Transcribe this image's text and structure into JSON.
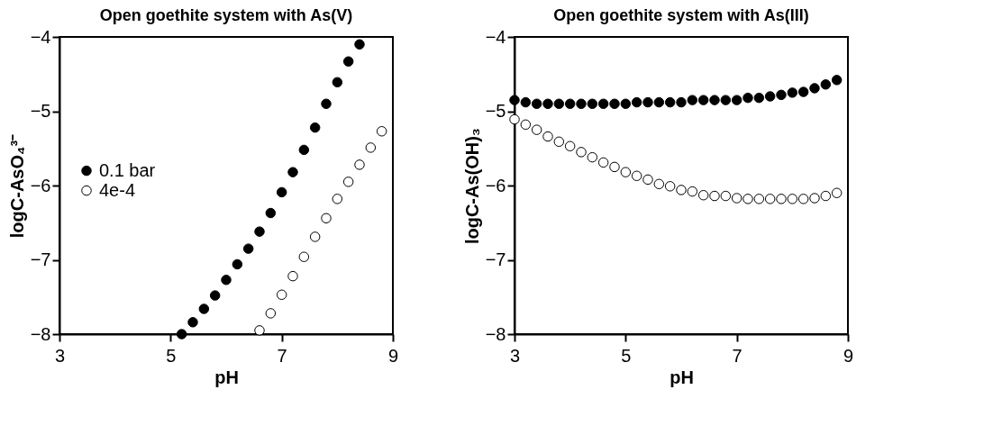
{
  "chart_data": [
    {
      "type": "scatter",
      "title": "Open goethite system with As(V)",
      "xlabel": "pH",
      "ylabel": "logC-AsO₄³⁻",
      "xlim": [
        3,
        9
      ],
      "xticks": [
        3,
        5,
        7,
        9
      ],
      "ylim": [
        -8,
        -4
      ],
      "yticks": [
        -8,
        -7,
        -6,
        -5,
        -4
      ],
      "grid": false,
      "legend": "left",
      "marker": "circle",
      "series": [
        {
          "name": "0.1 bar",
          "color": "#000000",
          "x": [
            5.2,
            5.4,
            5.6,
            5.8,
            6.0,
            6.2,
            6.4,
            6.6,
            6.8,
            7.0,
            7.2,
            7.4,
            7.6,
            7.8,
            8.0,
            8.2,
            8.4
          ],
          "values": [
            -8.0,
            -7.84,
            -7.66,
            -7.48,
            -7.27,
            -7.06,
            -6.85,
            -6.62,
            -6.37,
            -6.09,
            -5.82,
            -5.52,
            -5.22,
            -4.9,
            -4.61,
            -4.33,
            -4.1
          ]
        },
        {
          "name": "4e-4",
          "color": "#ffffff",
          "x": [
            6.6,
            6.8,
            7.0,
            7.2,
            7.4,
            7.6,
            7.8,
            8.0,
            8.2,
            8.4,
            8.6,
            8.8
          ],
          "values": [
            -7.95,
            -7.72,
            -7.47,
            -7.22,
            -6.96,
            -6.69,
            -6.44,
            -6.18,
            -5.95,
            -5.72,
            -5.49,
            -5.27
          ]
        }
      ]
    },
    {
      "type": "scatter",
      "title": "Open goethite system with As(III)",
      "xlabel": "pH",
      "ylabel": "logC-As(OH)₃",
      "xlim": [
        3,
        9
      ],
      "xticks": [
        3,
        5,
        7,
        9
      ],
      "ylim": [
        -8,
        -4
      ],
      "yticks": [
        -8,
        -7,
        -6,
        -5,
        -4
      ],
      "grid": false,
      "legend": "left",
      "marker": "circle",
      "series": [
        {
          "name": "0.1 bar",
          "color": "#000000",
          "x": [
            3.0,
            3.2,
            3.4,
            3.6,
            3.8,
            4.0,
            4.2,
            4.4,
            4.6,
            4.8,
            5.0,
            5.2,
            5.4,
            5.6,
            5.8,
            6.0,
            6.2,
            6.4,
            6.6,
            6.8,
            7.0,
            7.2,
            7.4,
            7.6,
            7.8,
            8.0,
            8.2,
            8.4,
            8.6,
            8.8
          ],
          "values": [
            -4.85,
            -4.88,
            -4.9,
            -4.9,
            -4.9,
            -4.9,
            -4.9,
            -4.9,
            -4.9,
            -4.9,
            -4.9,
            -4.88,
            -4.88,
            -4.88,
            -4.88,
            -4.88,
            -4.85,
            -4.85,
            -4.85,
            -4.85,
            -4.85,
            -4.82,
            -4.82,
            -4.8,
            -4.78,
            -4.75,
            -4.74,
            -4.69,
            -4.64,
            -4.58
          ]
        },
        {
          "name": "4e-4",
          "color": "#ffffff",
          "x": [
            3.0,
            3.2,
            3.4,
            3.6,
            3.8,
            4.0,
            4.2,
            4.4,
            4.6,
            4.8,
            5.0,
            5.2,
            5.4,
            5.6,
            5.8,
            6.0,
            6.2,
            6.4,
            6.6,
            6.8,
            7.0,
            7.2,
            7.4,
            7.6,
            7.8,
            8.0,
            8.2,
            8.4,
            8.6,
            8.8
          ],
          "values": [
            -5.11,
            -5.18,
            -5.25,
            -5.34,
            -5.41,
            -5.47,
            -5.55,
            -5.62,
            -5.69,
            -5.75,
            -5.82,
            -5.87,
            -5.92,
            -5.98,
            -6.01,
            -6.06,
            -6.08,
            -6.13,
            -6.14,
            -6.14,
            -6.17,
            -6.18,
            -6.18,
            -6.18,
            -6.18,
            -6.18,
            -6.18,
            -6.17,
            -6.14,
            -6.1
          ]
        }
      ]
    }
  ]
}
